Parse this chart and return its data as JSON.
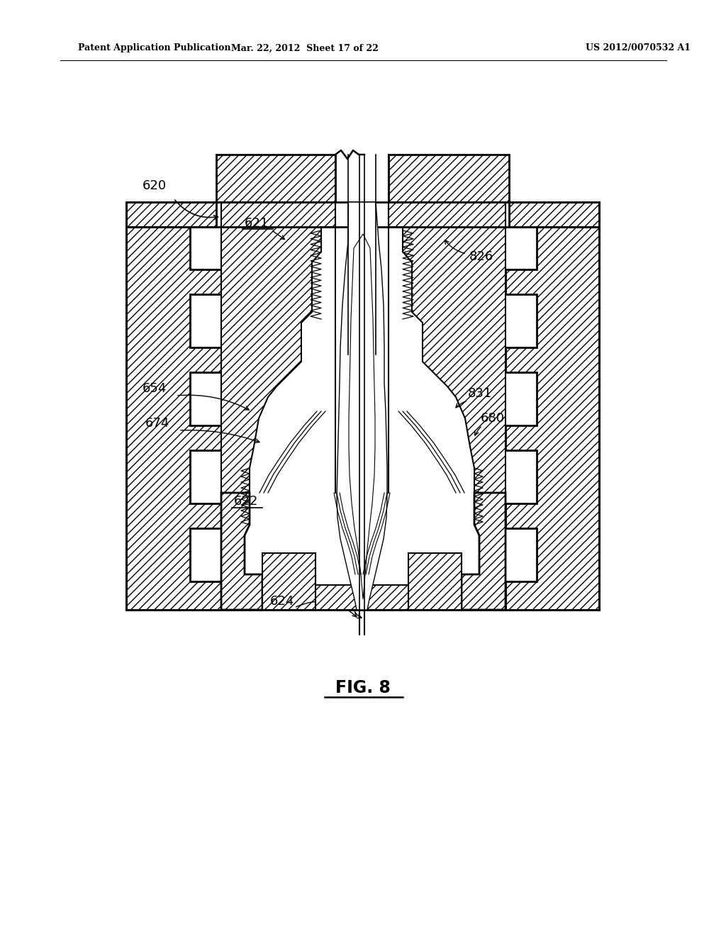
{
  "background_color": "#ffffff",
  "line_color": "#000000",
  "fig_width": 10.24,
  "fig_height": 13.2,
  "header_left": "Patent Application Publication",
  "header_center": "Mar. 22, 2012  Sheet 17 of 22",
  "header_right": "US 2012/0070532 A1",
  "figure_label": "FIG. 8"
}
